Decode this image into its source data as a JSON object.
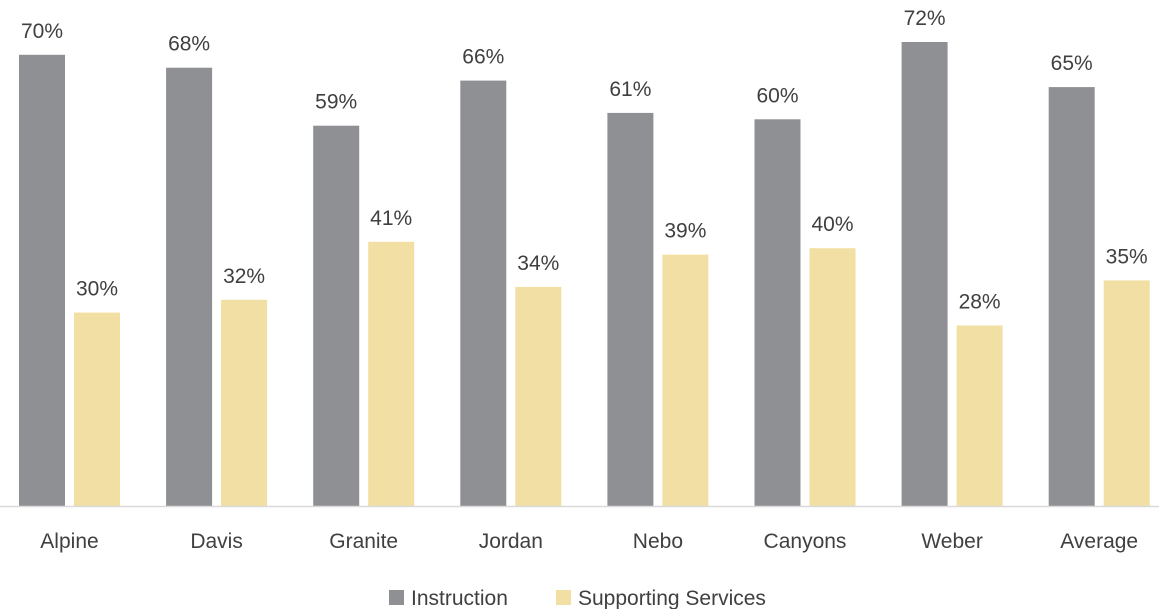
{
  "chart_data": {
    "type": "bar",
    "categories": [
      "Alpine",
      "Davis",
      "Granite",
      "Jordan",
      "Nebo",
      "Canyons",
      "Weber",
      "Average"
    ],
    "series": [
      {
        "name": "Instruction",
        "values": [
          70,
          68,
          59,
          66,
          61,
          60,
          72,
          65
        ],
        "color": "#8f9094"
      },
      {
        "name": "Supporting Services",
        "values": [
          30,
          32,
          41,
          34,
          39,
          40,
          28,
          35
        ],
        "color": "#f2dfa3"
      }
    ],
    "value_suffix": "%",
    "ylim": [
      0,
      100
    ],
    "grid": false,
    "legend_position": "bottom-center",
    "title": "",
    "xlabel": "",
    "ylabel": ""
  }
}
